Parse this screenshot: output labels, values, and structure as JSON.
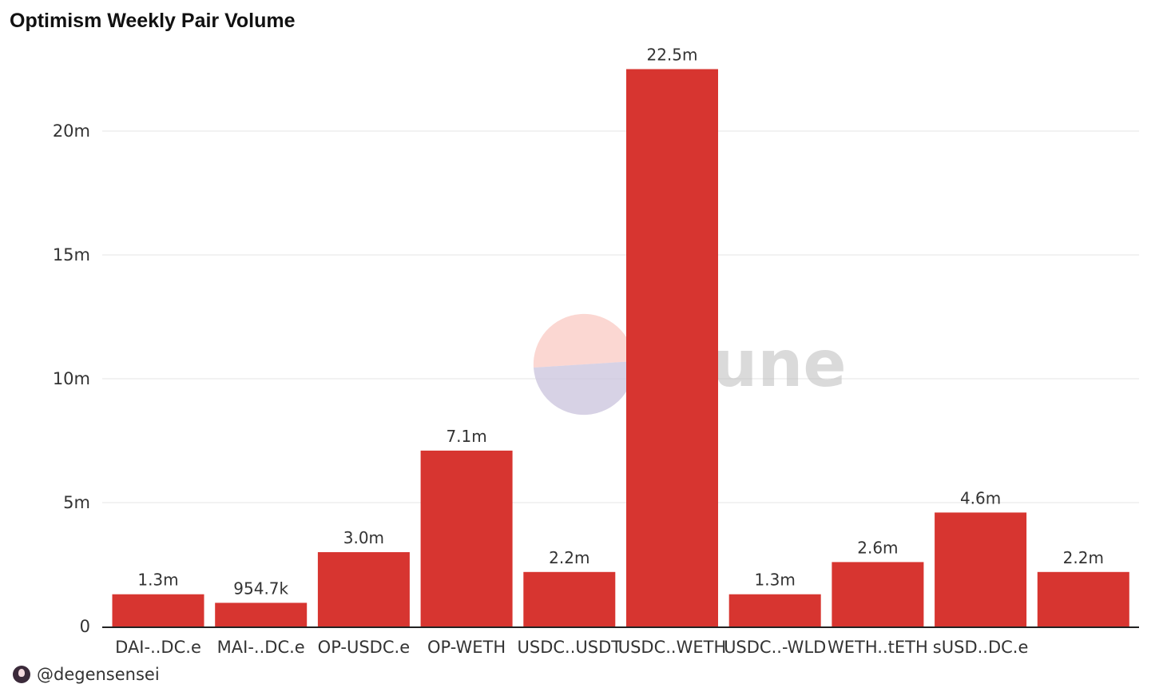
{
  "title": "Optimism Weekly Pair Volume",
  "watermark": "Dune",
  "footer": {
    "handle": "@degensensei"
  },
  "colors": {
    "bar": "#d73530",
    "grid": "#e6e6e6",
    "axis": "#222222"
  },
  "chart_data": {
    "type": "bar",
    "title": "Optimism Weekly Pair Volume",
    "categories": [
      "DAI-..DC.e",
      "MAI-..DC.e",
      "OP-USDC.e",
      "OP-WETH",
      "USDC..USDT",
      "USDC..WETH",
      "USDC..-WLD",
      "WETH..tETH",
      "sUSD..DC.e",
      ""
    ],
    "values": [
      1300000,
      954700,
      3000000,
      7100000,
      2200000,
      22500000,
      1300000,
      2600000,
      4600000,
      2200000
    ],
    "data_labels": [
      "1.3m",
      "954.7k",
      "3.0m",
      "7.1m",
      "2.2m",
      "22.5m",
      "1.3m",
      "2.6m",
      "4.6m",
      "2.2m"
    ],
    "yticks": [
      0,
      5000000,
      10000000,
      15000000,
      20000000
    ],
    "ytick_labels": [
      "0",
      "5m",
      "10m",
      "15m",
      "20m"
    ],
    "ylim": [
      0,
      20000000
    ],
    "xlabel": "",
    "ylabel": "",
    "grid": true,
    "legend": false
  }
}
